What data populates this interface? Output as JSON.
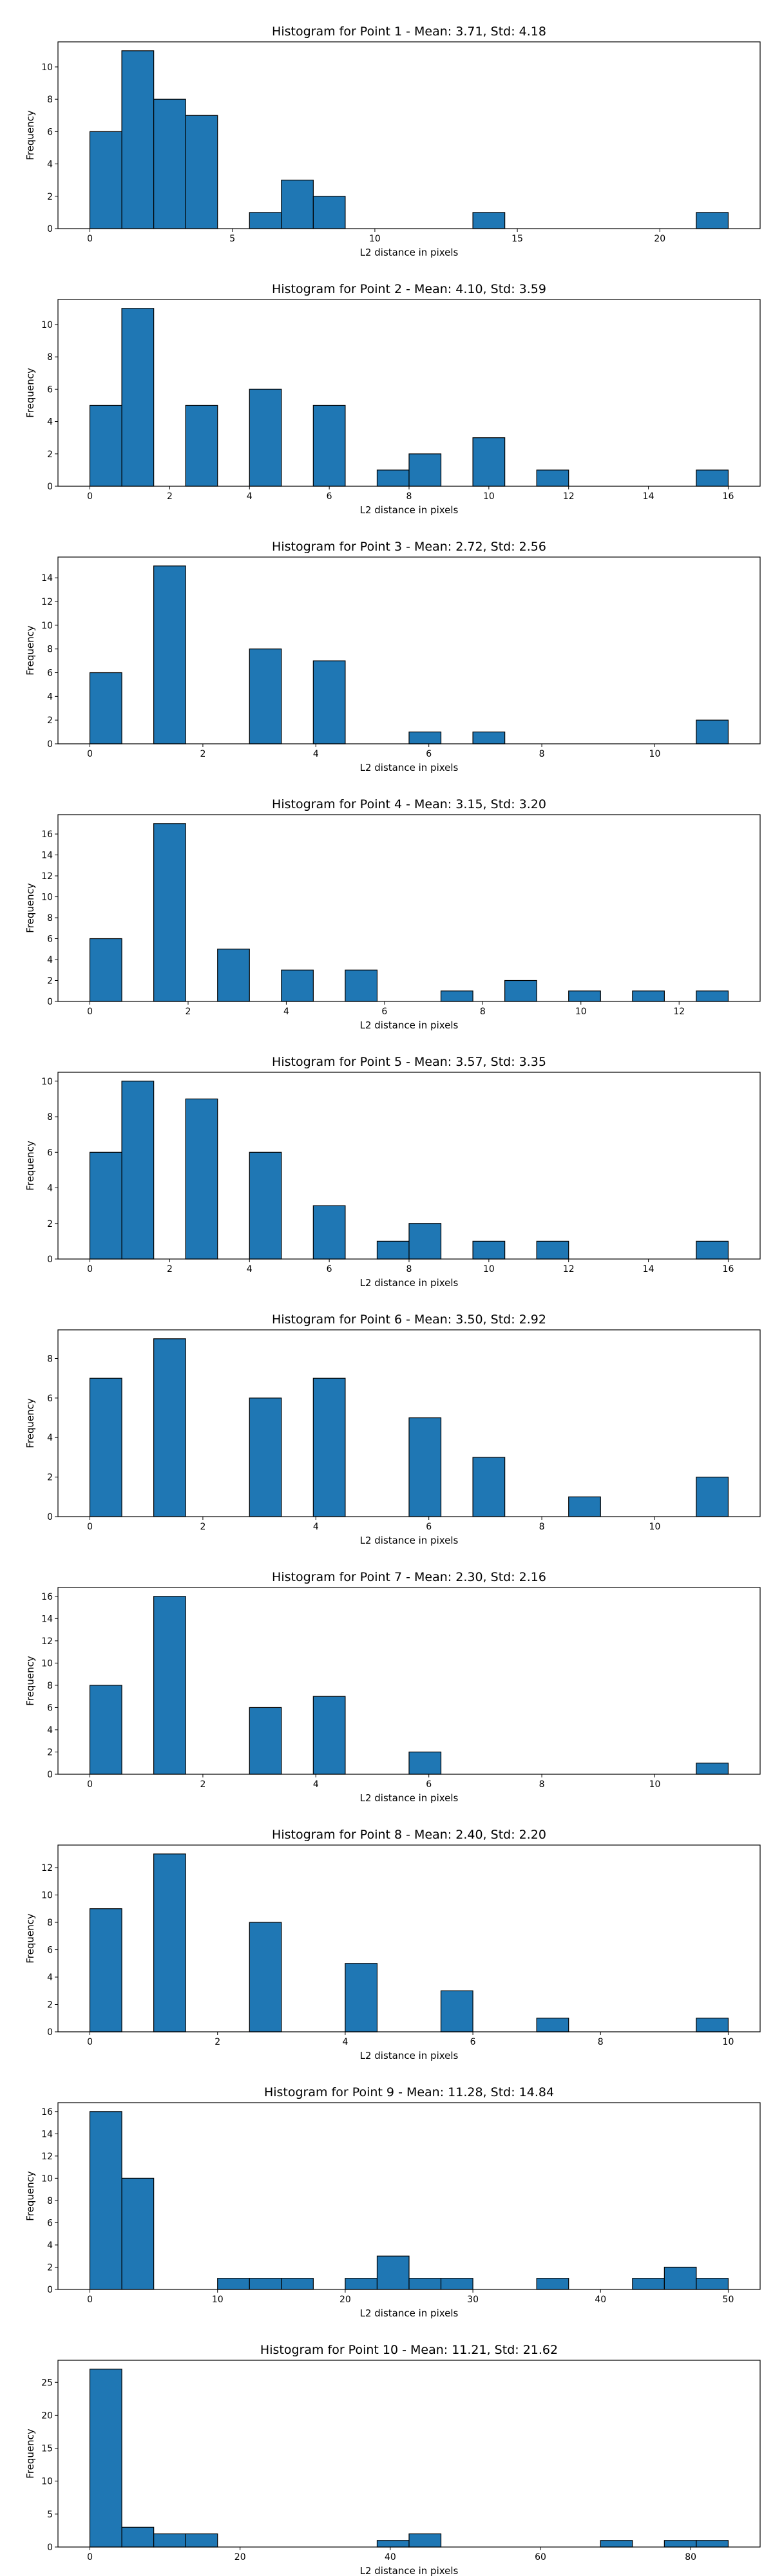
{
  "figure": {
    "bar_color": "#1f77b4",
    "edge_color": "#000000"
  },
  "chart_data": [
    {
      "type": "bar",
      "title": "Histogram for Point 1 - Mean: 3.71, Std: 4.18",
      "xlabel": "L2 distance in pixels",
      "ylabel": "Frequency",
      "xlim": [
        -1.12,
        23.52
      ],
      "ylim": [
        0,
        11.55
      ],
      "xticks": [
        0,
        5,
        10,
        15,
        20
      ],
      "yticks": [
        0,
        2,
        4,
        6,
        8,
        10
      ],
      "bins": [
        [
          0,
          1.12,
          6
        ],
        [
          1.12,
          2.24,
          11
        ],
        [
          2.24,
          3.36,
          8
        ],
        [
          3.36,
          4.48,
          7
        ],
        [
          4.48,
          5.6,
          0
        ],
        [
          5.6,
          6.72,
          1
        ],
        [
          6.72,
          7.84,
          3
        ],
        [
          7.84,
          8.96,
          2
        ],
        [
          8.96,
          10.08,
          0
        ],
        [
          10.08,
          11.2,
          0
        ],
        [
          11.2,
          12.32,
          0
        ],
        [
          12.32,
          13.44,
          0
        ],
        [
          13.44,
          14.56,
          1
        ],
        [
          14.56,
          15.68,
          0
        ],
        [
          15.68,
          16.8,
          0
        ],
        [
          16.8,
          17.92,
          0
        ],
        [
          17.92,
          19.04,
          0
        ],
        [
          19.04,
          20.16,
          0
        ],
        [
          20.16,
          21.28,
          0
        ],
        [
          21.28,
          22.4,
          1
        ]
      ]
    },
    {
      "type": "bar",
      "title": "Histogram for Point 2 - Mean: 4.10, Std: 3.59",
      "xlabel": "L2 distance in pixels",
      "ylabel": "Frequency",
      "xlim": [
        -0.8,
        16.8
      ],
      "ylim": [
        0,
        11.55
      ],
      "xticks": [
        0,
        2,
        4,
        6,
        8,
        10,
        12,
        14,
        16
      ],
      "yticks": [
        0,
        2,
        4,
        6,
        8,
        10
      ],
      "bins": [
        [
          0,
          0.8,
          5
        ],
        [
          0.8,
          1.6,
          11
        ],
        [
          1.6,
          2.4,
          0
        ],
        [
          2.4,
          3.2,
          5
        ],
        [
          3.2,
          4.0,
          0
        ],
        [
          4.0,
          4.8,
          6
        ],
        [
          4.8,
          5.6,
          0
        ],
        [
          5.6,
          6.4,
          5
        ],
        [
          6.4,
          7.2,
          0
        ],
        [
          7.2,
          8.0,
          1
        ],
        [
          8.0,
          8.8,
          2
        ],
        [
          8.8,
          9.6,
          0
        ],
        [
          9.6,
          10.4,
          3
        ],
        [
          10.4,
          11.2,
          0
        ],
        [
          11.2,
          12.0,
          1
        ],
        [
          12.0,
          12.8,
          0
        ],
        [
          12.8,
          13.6,
          0
        ],
        [
          13.6,
          14.4,
          0
        ],
        [
          14.4,
          15.2,
          0
        ],
        [
          15.2,
          16.0,
          1
        ]
      ]
    },
    {
      "type": "bar",
      "title": "Histogram for Point 3 - Mean: 2.72, Std: 2.56",
      "xlabel": "L2 distance in pixels",
      "ylabel": "Frequency",
      "xlim": [
        -0.565,
        11.865
      ],
      "ylim": [
        0,
        15.75
      ],
      "xticks": [
        0,
        2,
        4,
        6,
        8,
        10
      ],
      "yticks": [
        0,
        2,
        4,
        6,
        8,
        10,
        12,
        14
      ],
      "bins": [
        [
          0,
          0.565,
          6
        ],
        [
          0.565,
          1.13,
          0
        ],
        [
          1.13,
          1.695,
          15
        ],
        [
          1.695,
          2.26,
          0
        ],
        [
          2.26,
          2.825,
          0
        ],
        [
          2.825,
          3.39,
          8
        ],
        [
          3.39,
          3.955,
          0
        ],
        [
          3.955,
          4.52,
          7
        ],
        [
          4.52,
          5.085,
          0
        ],
        [
          5.085,
          5.65,
          0
        ],
        [
          5.65,
          6.215,
          1
        ],
        [
          6.215,
          6.78,
          0
        ],
        [
          6.78,
          7.345,
          1
        ],
        [
          7.345,
          7.91,
          0
        ],
        [
          7.91,
          8.475,
          0
        ],
        [
          8.475,
          9.04,
          0
        ],
        [
          9.04,
          9.605,
          0
        ],
        [
          9.605,
          10.17,
          0
        ],
        [
          10.17,
          10.735,
          0
        ],
        [
          10.735,
          11.3,
          2
        ]
      ]
    },
    {
      "type": "bar",
      "title": "Histogram for Point 4 - Mean: 3.15, Std: 3.20",
      "xlabel": "L2 distance in pixels",
      "ylabel": "Frequency",
      "xlim": [
        -0.65,
        13.65
      ],
      "ylim": [
        0,
        17.85
      ],
      "xticks": [
        0,
        2,
        4,
        6,
        8,
        10,
        12
      ],
      "yticks": [
        0,
        2,
        4,
        6,
        8,
        10,
        12,
        14,
        16
      ],
      "bins": [
        [
          0,
          0.65,
          6
        ],
        [
          0.65,
          1.3,
          0
        ],
        [
          1.3,
          1.95,
          17
        ],
        [
          1.95,
          2.6,
          0
        ],
        [
          2.6,
          3.25,
          5
        ],
        [
          3.25,
          3.9,
          0
        ],
        [
          3.9,
          4.55,
          3
        ],
        [
          4.55,
          5.2,
          0
        ],
        [
          5.2,
          5.85,
          3
        ],
        [
          5.85,
          6.5,
          0
        ],
        [
          6.5,
          7.15,
          0
        ],
        [
          7.15,
          7.8,
          1
        ],
        [
          7.8,
          8.45,
          0
        ],
        [
          8.45,
          9.1,
          2
        ],
        [
          9.1,
          9.75,
          0
        ],
        [
          9.75,
          10.4,
          1
        ],
        [
          10.4,
          11.05,
          0
        ],
        [
          11.05,
          11.7,
          1
        ],
        [
          11.7,
          12.35,
          0
        ],
        [
          12.35,
          13.0,
          1
        ]
      ]
    },
    {
      "type": "bar",
      "title": "Histogram for Point 5 - Mean: 3.57, Std: 3.35",
      "xlabel": "L2 distance in pixels",
      "ylabel": "Frequency",
      "xlim": [
        -0.8,
        16.8
      ],
      "ylim": [
        0,
        10.5
      ],
      "xticks": [
        0,
        2,
        4,
        6,
        8,
        10,
        12,
        14,
        16
      ],
      "yticks": [
        0,
        2,
        4,
        6,
        8,
        10
      ],
      "bins": [
        [
          0,
          0.8,
          6
        ],
        [
          0.8,
          1.6,
          10
        ],
        [
          1.6,
          2.4,
          0
        ],
        [
          2.4,
          3.2,
          9
        ],
        [
          3.2,
          4.0,
          0
        ],
        [
          4.0,
          4.8,
          6
        ],
        [
          4.8,
          5.6,
          0
        ],
        [
          5.6,
          6.4,
          3
        ],
        [
          6.4,
          7.2,
          0
        ],
        [
          7.2,
          8.0,
          1
        ],
        [
          8.0,
          8.8,
          2
        ],
        [
          8.8,
          9.6,
          0
        ],
        [
          9.6,
          10.4,
          1
        ],
        [
          10.4,
          11.2,
          0
        ],
        [
          11.2,
          12.0,
          1
        ],
        [
          12.0,
          12.8,
          0
        ],
        [
          12.8,
          13.6,
          0
        ],
        [
          13.6,
          14.4,
          0
        ],
        [
          14.4,
          15.2,
          0
        ],
        [
          15.2,
          16.0,
          1
        ]
      ]
    },
    {
      "type": "bar",
      "title": "Histogram for Point 6 - Mean: 3.50, Std: 2.92",
      "xlabel": "L2 distance in pixels",
      "ylabel": "Frequency",
      "xlim": [
        -0.565,
        11.865
      ],
      "ylim": [
        0,
        9.45
      ],
      "xticks": [
        0,
        2,
        4,
        6,
        8,
        10
      ],
      "yticks": [
        0,
        2,
        4,
        6,
        8
      ],
      "bins": [
        [
          0,
          0.565,
          7
        ],
        [
          0.565,
          1.13,
          0
        ],
        [
          1.13,
          1.695,
          9
        ],
        [
          1.695,
          2.26,
          0
        ],
        [
          2.26,
          2.825,
          0
        ],
        [
          2.825,
          3.39,
          6
        ],
        [
          3.39,
          3.955,
          0
        ],
        [
          3.955,
          4.52,
          7
        ],
        [
          4.52,
          5.085,
          0
        ],
        [
          5.085,
          5.65,
          0
        ],
        [
          5.65,
          6.215,
          5
        ],
        [
          6.215,
          6.78,
          0
        ],
        [
          6.78,
          7.345,
          3
        ],
        [
          7.345,
          7.91,
          0
        ],
        [
          7.91,
          8.475,
          0
        ],
        [
          8.475,
          9.04,
          1
        ],
        [
          9.04,
          9.605,
          0
        ],
        [
          9.605,
          10.17,
          0
        ],
        [
          10.17,
          10.735,
          0
        ],
        [
          10.735,
          11.3,
          2
        ]
      ]
    },
    {
      "type": "bar",
      "title": "Histogram for Point 7 - Mean: 2.30, Std: 2.16",
      "xlabel": "L2 distance in pixels",
      "ylabel": "Frequency",
      "xlim": [
        -0.565,
        11.865
      ],
      "ylim": [
        0,
        16.8
      ],
      "xticks": [
        0,
        2,
        4,
        6,
        8,
        10
      ],
      "yticks": [
        0,
        2,
        4,
        6,
        8,
        10,
        12,
        14,
        16
      ],
      "bins": [
        [
          0,
          0.565,
          8
        ],
        [
          0.565,
          1.13,
          0
        ],
        [
          1.13,
          1.695,
          16
        ],
        [
          1.695,
          2.26,
          0
        ],
        [
          2.26,
          2.825,
          0
        ],
        [
          2.825,
          3.39,
          6
        ],
        [
          3.39,
          3.955,
          0
        ],
        [
          3.955,
          4.52,
          7
        ],
        [
          4.52,
          5.085,
          0
        ],
        [
          5.085,
          5.65,
          0
        ],
        [
          5.65,
          6.215,
          2
        ],
        [
          6.215,
          6.78,
          0
        ],
        [
          6.78,
          7.345,
          0
        ],
        [
          7.345,
          7.91,
          0
        ],
        [
          7.91,
          8.475,
          0
        ],
        [
          8.475,
          9.04,
          0
        ],
        [
          9.04,
          9.605,
          0
        ],
        [
          9.605,
          10.17,
          0
        ],
        [
          10.17,
          10.735,
          0
        ],
        [
          10.735,
          11.3,
          1
        ]
      ]
    },
    {
      "type": "bar",
      "title": "Histogram for Point 8 - Mean: 2.40, Std: 2.20",
      "xlabel": "L2 distance in pixels",
      "ylabel": "Frequency",
      "xlim": [
        -0.5,
        10.5
      ],
      "ylim": [
        0,
        13.65
      ],
      "xticks": [
        0,
        2,
        4,
        6,
        8,
        10
      ],
      "yticks": [
        0,
        2,
        4,
        6,
        8,
        10,
        12
      ],
      "bins": [
        [
          0,
          0.5,
          9
        ],
        [
          0.5,
          1.0,
          0
        ],
        [
          1.0,
          1.5,
          13
        ],
        [
          1.5,
          2.0,
          0
        ],
        [
          2.0,
          2.5,
          0
        ],
        [
          2.5,
          3.0,
          8
        ],
        [
          3.0,
          3.5,
          0
        ],
        [
          3.5,
          4.0,
          0
        ],
        [
          4.0,
          4.5,
          5
        ],
        [
          4.5,
          5.0,
          0
        ],
        [
          5.0,
          5.5,
          0
        ],
        [
          5.5,
          6.0,
          3
        ],
        [
          6.0,
          6.5,
          0
        ],
        [
          6.5,
          7.0,
          0
        ],
        [
          7.0,
          7.5,
          1
        ],
        [
          7.5,
          8.0,
          0
        ],
        [
          8.0,
          8.5,
          0
        ],
        [
          8.5,
          9.0,
          0
        ],
        [
          9.0,
          9.5,
          0
        ],
        [
          9.5,
          10.0,
          1
        ]
      ]
    },
    {
      "type": "bar",
      "title": "Histogram for Point 9 - Mean: 11.28, Std: 14.84",
      "xlabel": "L2 distance in pixels",
      "ylabel": "Frequency",
      "xlim": [
        -2.5,
        52.5
      ],
      "ylim": [
        0,
        16.8
      ],
      "xticks": [
        0,
        10,
        20,
        30,
        40,
        50
      ],
      "yticks": [
        0,
        2,
        4,
        6,
        8,
        10,
        12,
        14,
        16
      ],
      "bins": [
        [
          0,
          2.5,
          16
        ],
        [
          2.5,
          5.0,
          10
        ],
        [
          5.0,
          7.5,
          0
        ],
        [
          7.5,
          10.0,
          0
        ],
        [
          10.0,
          12.5,
          1
        ],
        [
          12.5,
          15.0,
          1
        ],
        [
          15.0,
          17.5,
          1
        ],
        [
          17.5,
          20.0,
          0
        ],
        [
          20.0,
          22.5,
          1
        ],
        [
          22.5,
          25.0,
          3
        ],
        [
          25.0,
          27.5,
          1
        ],
        [
          27.5,
          30.0,
          1
        ],
        [
          30.0,
          32.5,
          0
        ],
        [
          32.5,
          35.0,
          0
        ],
        [
          35.0,
          37.5,
          1
        ],
        [
          37.5,
          40.0,
          0
        ],
        [
          40.0,
          42.5,
          0
        ],
        [
          42.5,
          45.0,
          1
        ],
        [
          45.0,
          47.5,
          2
        ],
        [
          47.5,
          50.0,
          1
        ]
      ]
    },
    {
      "type": "bar",
      "title": "Histogram for Point 10 - Mean: 11.21, Std: 21.62",
      "xlabel": "L2 distance in pixels",
      "ylabel": "Frequency",
      "xlim": [
        -4.25,
        89.25
      ],
      "ylim": [
        0,
        28.35
      ],
      "xticks": [
        0,
        20,
        40,
        60,
        80
      ],
      "yticks": [
        0,
        5,
        10,
        15,
        20,
        25
      ],
      "bins": [
        [
          0,
          4.25,
          27
        ],
        [
          4.25,
          8.5,
          3
        ],
        [
          8.5,
          12.75,
          2
        ],
        [
          12.75,
          17.0,
          2
        ],
        [
          17.0,
          21.25,
          0
        ],
        [
          21.25,
          25.5,
          0
        ],
        [
          25.5,
          29.75,
          0
        ],
        [
          29.75,
          34.0,
          0
        ],
        [
          34.0,
          38.25,
          0
        ],
        [
          38.25,
          42.5,
          1
        ],
        [
          42.5,
          46.75,
          2
        ],
        [
          46.75,
          51.0,
          0
        ],
        [
          51.0,
          55.25,
          0
        ],
        [
          55.25,
          59.5,
          0
        ],
        [
          59.5,
          63.75,
          0
        ],
        [
          63.75,
          68.0,
          0
        ],
        [
          68.0,
          72.25,
          1
        ],
        [
          72.25,
          76.5,
          0
        ],
        [
          76.5,
          80.75,
          1
        ],
        [
          80.75,
          85.0,
          1
        ]
      ]
    }
  ]
}
